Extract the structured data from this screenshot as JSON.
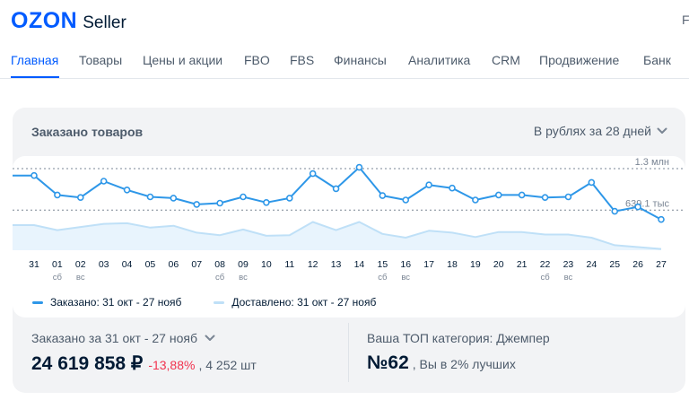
{
  "header": {
    "logo_mark": "OZON",
    "logo_sub": "Seller",
    "right_text": "F"
  },
  "nav": {
    "tabs": [
      {
        "label": "Главная",
        "active": true
      },
      {
        "label": "Товары",
        "active": false
      },
      {
        "label": "Цены и акции",
        "active": false
      },
      {
        "label": "FBO",
        "active": false
      },
      {
        "label": "FBS",
        "active": false
      },
      {
        "label": "Финансы",
        "active": false
      },
      {
        "label": "Аналитика",
        "active": false
      },
      {
        "label": "CRM",
        "active": false
      },
      {
        "label": "Продвижение",
        "active": false
      },
      {
        "label": "Банк",
        "active": false
      }
    ]
  },
  "card": {
    "title": "Заказано товаров",
    "period_label": "В рублях за 28 дней",
    "legend": {
      "ordered": "Заказано: 31 окт - 27 нояб",
      "delivered": "Доставлено: 31 окт - 27 нояб"
    },
    "summary": {
      "label": "Заказано за 31 окт - 27 нояб",
      "amount": "24 619 858 ₽",
      "change": "-13,88%",
      "count": ", 4 252 шт"
    },
    "top_category": {
      "label": "Ваша ТОП категория: Джемпер",
      "rank": "№62",
      "note": ", Вы в 2% лучших"
    }
  },
  "chart_data": {
    "type": "line",
    "x": [
      "31",
      "01",
      "02",
      "03",
      "04",
      "05",
      "06",
      "07",
      "08",
      "09",
      "10",
      "11",
      "12",
      "13",
      "14",
      "15",
      "16",
      "17",
      "18",
      "19",
      "20",
      "21",
      "22",
      "23",
      "24",
      "25",
      "26",
      "27"
    ],
    "x_sublabels": [
      "",
      "сб",
      "вс",
      "",
      "",
      "",
      "",
      "",
      "сб",
      "вс",
      "",
      "",
      "",
      "",
      "",
      "сб",
      "вс",
      "",
      "",
      "",
      "",
      "",
      "сб",
      "вс",
      "",
      "",
      "",
      ""
    ],
    "reference_lines": [
      {
        "label": "1.3 млн",
        "value": 1300000
      },
      {
        "label": "639.1 тыс",
        "value": 639100
      }
    ],
    "ylim": [
      0,
      1500000
    ],
    "colors": {
      "ordered": "#2e97e8",
      "delivered": "#bfe0f7"
    },
    "series": [
      {
        "name": "Заказано: 31 окт - 27 нояб",
        "values": [
          1190000,
          880000,
          840000,
          1100000,
          960000,
          850000,
          830000,
          730000,
          750000,
          850000,
          760000,
          830000,
          1220000,
          980000,
          1320000,
          870000,
          800000,
          1040000,
          990000,
          800000,
          880000,
          880000,
          840000,
          850000,
          1080000,
          620000,
          690000,
          490000
        ]
      },
      {
        "name": "Доставлено: 31 окт - 27 нояб",
        "values": [
          400000,
          320000,
          370000,
          420000,
          430000,
          360000,
          390000,
          280000,
          240000,
          330000,
          230000,
          240000,
          450000,
          320000,
          450000,
          260000,
          200000,
          310000,
          280000,
          210000,
          290000,
          290000,
          250000,
          250000,
          200000,
          80000,
          50000,
          20000
        ]
      }
    ]
  }
}
